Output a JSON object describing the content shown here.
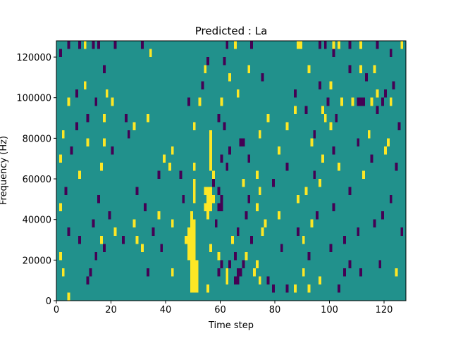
{
  "chart_data": {
    "type": "heatmap",
    "title": "Predicted : La",
    "xlabel": "Time step",
    "ylabel": "Frequency (Hz)",
    "xlim": [
      0,
      128
    ],
    "ylim": [
      0,
      128000
    ],
    "xticks": [
      0,
      20,
      40,
      60,
      80,
      100,
      120
    ],
    "yticks": [
      0,
      20000,
      40000,
      60000,
      80000,
      100000,
      120000
    ],
    "xtick_labels": [
      "0",
      "20",
      "40",
      "60",
      "80",
      "100",
      "120"
    ],
    "ytick_labels": [
      "0",
      "20000",
      "40000",
      "60000",
      "80000",
      "100000",
      "120000"
    ],
    "colormap": "viridis",
    "value_levels": [
      -1,
      0,
      1
    ],
    "level_colors": {
      "-1": "#440154",
      "0": "#21918c",
      "1": "#fde725"
    },
    "background_value": 0,
    "grid": false,
    "bin_height_hz": 4000,
    "cells": [
      {
        "t": 4,
        "f": 0,
        "v": 1
      },
      {
        "t": 49,
        "f": 4000,
        "v": 1
      },
      {
        "t": 50,
        "f": 4000,
        "v": 1
      },
      {
        "t": 51,
        "f": 4000,
        "v": 1
      },
      {
        "t": 55,
        "f": 4000,
        "v": 1
      },
      {
        "t": 79,
        "f": 4000,
        "v": -1
      },
      {
        "t": 84,
        "f": 4000,
        "v": -1
      },
      {
        "t": 87,
        "f": 4000,
        "v": 1
      },
      {
        "t": 92,
        "f": 4000,
        "v": 1
      },
      {
        "t": 103,
        "f": 4000,
        "v": -1
      },
      {
        "t": 11,
        "f": 8000,
        "v": -1
      },
      {
        "t": 49,
        "f": 8000,
        "v": 1
      },
      {
        "t": 50,
        "f": 8000,
        "v": 1
      },
      {
        "t": 51,
        "f": 8000,
        "v": 1
      },
      {
        "t": 62,
        "f": 8000,
        "v": 1
      },
      {
        "t": 65,
        "f": 8000,
        "v": -1
      },
      {
        "t": 66,
        "f": 8000,
        "v": -1
      },
      {
        "t": 74,
        "f": 8000,
        "v": 1
      },
      {
        "t": 77,
        "f": 8000,
        "v": -1
      },
      {
        "t": 96,
        "f": 8000,
        "v": 1
      },
      {
        "t": 2,
        "f": 12000,
        "v": 1
      },
      {
        "t": 12,
        "f": 12000,
        "v": -1
      },
      {
        "t": 33,
        "f": 12000,
        "v": -1
      },
      {
        "t": 42,
        "f": 12000,
        "v": 1
      },
      {
        "t": 49,
        "f": 12000,
        "v": 1
      },
      {
        "t": 50,
        "f": 12000,
        "v": 1
      },
      {
        "t": 51,
        "f": 12000,
        "v": 1
      },
      {
        "t": 59,
        "f": 12000,
        "v": -1
      },
      {
        "t": 62,
        "f": 12000,
        "v": 1
      },
      {
        "t": 66,
        "f": 12000,
        "v": -1
      },
      {
        "t": 67,
        "f": 12000,
        "v": -1
      },
      {
        "t": 72,
        "f": 12000,
        "v": 1
      },
      {
        "t": 90,
        "f": 12000,
        "v": 1
      },
      {
        "t": 105,
        "f": 12000,
        "v": -1
      },
      {
        "t": 111,
        "f": 12000,
        "v": -1
      },
      {
        "t": 124,
        "f": 12000,
        "v": 1
      },
      {
        "t": 49,
        "f": 16000,
        "v": 1
      },
      {
        "t": 50,
        "f": 16000,
        "v": 1
      },
      {
        "t": 51,
        "f": 16000,
        "v": 1
      },
      {
        "t": 60,
        "f": 16000,
        "v": -1
      },
      {
        "t": 63,
        "f": 16000,
        "v": -1
      },
      {
        "t": 68,
        "f": 16000,
        "v": -1
      },
      {
        "t": 73,
        "f": 16000,
        "v": 1
      },
      {
        "t": 107,
        "f": 16000,
        "v": -1
      },
      {
        "t": 118,
        "f": 16000,
        "v": -1
      },
      {
        "t": 1,
        "f": 20000,
        "v": 1
      },
      {
        "t": 14,
        "f": 20000,
        "v": -1
      },
      {
        "t": 48,
        "f": 20000,
        "v": 1
      },
      {
        "t": 49,
        "f": 20000,
        "v": 1
      },
      {
        "t": 50,
        "f": 20000,
        "v": 1
      },
      {
        "t": 59,
        "f": 20000,
        "v": 1
      },
      {
        "t": 65,
        "f": 20000,
        "v": -1
      },
      {
        "t": 69,
        "f": 20000,
        "v": 1
      },
      {
        "t": 92,
        "f": 20000,
        "v": -1
      },
      {
        "t": 17,
        "f": 24000,
        "v": -1
      },
      {
        "t": 31,
        "f": 24000,
        "v": 1
      },
      {
        "t": 38,
        "f": 24000,
        "v": -1
      },
      {
        "t": 48,
        "f": 24000,
        "v": 1
      },
      {
        "t": 49,
        "f": 24000,
        "v": 1
      },
      {
        "t": 50,
        "f": 24000,
        "v": 1
      },
      {
        "t": 56,
        "f": 24000,
        "v": 1
      },
      {
        "t": 82,
        "f": 24000,
        "v": -1
      },
      {
        "t": 100,
        "f": 24000,
        "v": -1
      },
      {
        "t": 8,
        "f": 28000,
        "v": -1
      },
      {
        "t": 16,
        "f": 28000,
        "v": 1
      },
      {
        "t": 24,
        "f": 28000,
        "v": -1
      },
      {
        "t": 29,
        "f": 28000,
        "v": 1
      },
      {
        "t": 47,
        "f": 28000,
        "v": 1
      },
      {
        "t": 48,
        "f": 28000,
        "v": 1
      },
      {
        "t": 49,
        "f": 28000,
        "v": 1
      },
      {
        "t": 50,
        "f": 28000,
        "v": 1
      },
      {
        "t": 64,
        "f": 28000,
        "v": 1
      },
      {
        "t": 71,
        "f": 28000,
        "v": -1
      },
      {
        "t": 90,
        "f": 28000,
        "v": 1
      },
      {
        "t": 105,
        "f": 28000,
        "v": -1
      },
      {
        "t": 4,
        "f": 32000,
        "v": -1
      },
      {
        "t": 21,
        "f": 32000,
        "v": 1
      },
      {
        "t": 35,
        "f": 32000,
        "v": -1
      },
      {
        "t": 48,
        "f": 32000,
        "v": 1
      },
      {
        "t": 49,
        "f": 32000,
        "v": 1
      },
      {
        "t": 50,
        "f": 32000,
        "v": 1
      },
      {
        "t": 66,
        "f": 32000,
        "v": -1
      },
      {
        "t": 75,
        "f": 32000,
        "v": 1
      },
      {
        "t": 88,
        "f": 32000,
        "v": -1
      },
      {
        "t": 110,
        "f": 32000,
        "v": -1
      },
      {
        "t": 126,
        "f": 32000,
        "v": -1
      },
      {
        "t": 13,
        "f": 36000,
        "v": -1
      },
      {
        "t": 28,
        "f": 36000,
        "v": 1
      },
      {
        "t": 42,
        "f": 36000,
        "v": 1
      },
      {
        "t": 49,
        "f": 36000,
        "v": 1
      },
      {
        "t": 50,
        "f": 36000,
        "v": 1
      },
      {
        "t": 58,
        "f": 36000,
        "v": -1
      },
      {
        "t": 76,
        "f": 36000,
        "v": 1
      },
      {
        "t": 93,
        "f": 36000,
        "v": 1
      },
      {
        "t": 116,
        "f": 36000,
        "v": -1
      },
      {
        "t": 19,
        "f": 40000,
        "v": -1
      },
      {
        "t": 37,
        "f": 40000,
        "v": 1
      },
      {
        "t": 49,
        "f": 40000,
        "v": 1
      },
      {
        "t": 55,
        "f": 40000,
        "v": 1
      },
      {
        "t": 69,
        "f": 40000,
        "v": -1
      },
      {
        "t": 81,
        "f": 40000,
        "v": 1
      },
      {
        "t": 95,
        "f": 40000,
        "v": -1
      },
      {
        "t": 119,
        "f": 40000,
        "v": -1
      },
      {
        "t": 1,
        "f": 44000,
        "v": 1
      },
      {
        "t": 32,
        "f": 44000,
        "v": -1
      },
      {
        "t": 54,
        "f": 44000,
        "v": 1
      },
      {
        "t": 55,
        "f": 44000,
        "v": 1
      },
      {
        "t": 56,
        "f": 44000,
        "v": 1
      },
      {
        "t": 59,
        "f": 44000,
        "v": -1
      },
      {
        "t": 60,
        "f": 44000,
        "v": -1
      },
      {
        "t": 73,
        "f": 44000,
        "v": 1
      },
      {
        "t": 101,
        "f": 44000,
        "v": -1
      },
      {
        "t": 15,
        "f": 48000,
        "v": -1
      },
      {
        "t": 46,
        "f": 48000,
        "v": -1
      },
      {
        "t": 50,
        "f": 48000,
        "v": 1
      },
      {
        "t": 55,
        "f": 48000,
        "v": 1
      },
      {
        "t": 56,
        "f": 48000,
        "v": 1
      },
      {
        "t": 57,
        "f": 48000,
        "v": 1
      },
      {
        "t": 60,
        "f": 48000,
        "v": -1
      },
      {
        "t": 70,
        "f": 48000,
        "v": -1
      },
      {
        "t": 88,
        "f": 48000,
        "v": 1
      },
      {
        "t": 122,
        "f": 48000,
        "v": -1
      },
      {
        "t": 3,
        "f": 52000,
        "v": -1
      },
      {
        "t": 29,
        "f": 52000,
        "v": -1
      },
      {
        "t": 50,
        "f": 52000,
        "v": 1
      },
      {
        "t": 54,
        "f": 52000,
        "v": 1
      },
      {
        "t": 55,
        "f": 52000,
        "v": 1
      },
      {
        "t": 56,
        "f": 52000,
        "v": 1
      },
      {
        "t": 59,
        "f": 52000,
        "v": -1
      },
      {
        "t": 74,
        "f": 52000,
        "v": 1
      },
      {
        "t": 91,
        "f": 52000,
        "v": 1
      },
      {
        "t": 107,
        "f": 52000,
        "v": -1
      },
      {
        "t": 50,
        "f": 56000,
        "v": 1
      },
      {
        "t": 57,
        "f": 56000,
        "v": -1
      },
      {
        "t": 68,
        "f": 56000,
        "v": 1
      },
      {
        "t": 79,
        "f": 56000,
        "v": -1
      },
      {
        "t": 96,
        "f": 56000,
        "v": 1
      },
      {
        "t": 8,
        "f": 60000,
        "v": 1
      },
      {
        "t": 37,
        "f": 60000,
        "v": -1
      },
      {
        "t": 45,
        "f": 60000,
        "v": -1
      },
      {
        "t": 57,
        "f": 60000,
        "v": 1
      },
      {
        "t": 73,
        "f": 60000,
        "v": 1
      },
      {
        "t": 94,
        "f": 60000,
        "v": -1
      },
      {
        "t": 112,
        "f": 60000,
        "v": 1
      },
      {
        "t": 16,
        "f": 64000,
        "v": 1
      },
      {
        "t": 41,
        "f": 64000,
        "v": 1
      },
      {
        "t": 50,
        "f": 64000,
        "v": 1
      },
      {
        "t": 56,
        "f": 64000,
        "v": 1
      },
      {
        "t": 62,
        "f": 64000,
        "v": -1
      },
      {
        "t": 84,
        "f": 64000,
        "v": -1
      },
      {
        "t": 103,
        "f": 64000,
        "v": 1
      },
      {
        "t": 124,
        "f": 64000,
        "v": -1
      },
      {
        "t": 1,
        "f": 68000,
        "v": 1
      },
      {
        "t": 39,
        "f": 68000,
        "v": 1
      },
      {
        "t": 56,
        "f": 68000,
        "v": 1
      },
      {
        "t": 60,
        "f": 68000,
        "v": -1
      },
      {
        "t": 70,
        "f": 68000,
        "v": -1
      },
      {
        "t": 97,
        "f": 68000,
        "v": 1
      },
      {
        "t": 115,
        "f": 68000,
        "v": -1
      },
      {
        "t": 5,
        "f": 72000,
        "v": -1
      },
      {
        "t": 20,
        "f": 72000,
        "v": -1
      },
      {
        "t": 42,
        "f": 72000,
        "v": 1
      },
      {
        "t": 56,
        "f": 72000,
        "v": 1
      },
      {
        "t": 63,
        "f": 72000,
        "v": -1
      },
      {
        "t": 81,
        "f": 72000,
        "v": 1
      },
      {
        "t": 101,
        "f": 72000,
        "v": -1
      },
      {
        "t": 120,
        "f": 72000,
        "v": 1
      },
      {
        "t": 11,
        "f": 76000,
        "v": 1
      },
      {
        "t": 17,
        "f": 76000,
        "v": 1
      },
      {
        "t": 56,
        "f": 76000,
        "v": 1
      },
      {
        "t": 67,
        "f": 76000,
        "v": -1
      },
      {
        "t": 68,
        "f": 76000,
        "v": -1
      },
      {
        "t": 93,
        "f": 76000,
        "v": 1
      },
      {
        "t": 110,
        "f": 76000,
        "v": -1
      },
      {
        "t": 121,
        "f": 76000,
        "v": 1
      },
      {
        "t": 2,
        "f": 80000,
        "v": 1
      },
      {
        "t": 26,
        "f": 80000,
        "v": -1
      },
      {
        "t": 56,
        "f": 80000,
        "v": 1
      },
      {
        "t": 74,
        "f": 80000,
        "v": 1
      },
      {
        "t": 94,
        "f": 80000,
        "v": -1
      },
      {
        "t": 114,
        "f": 80000,
        "v": 1
      },
      {
        "t": 7,
        "f": 84000,
        "v": -1
      },
      {
        "t": 28,
        "f": 84000,
        "v": 1
      },
      {
        "t": 50,
        "f": 84000,
        "v": 1
      },
      {
        "t": 61,
        "f": 84000,
        "v": -1
      },
      {
        "t": 84,
        "f": 84000,
        "v": 1
      },
      {
        "t": 100,
        "f": 84000,
        "v": 1
      },
      {
        "t": 125,
        "f": 84000,
        "v": -1
      },
      {
        "t": 11,
        "f": 88000,
        "v": -1
      },
      {
        "t": 17,
        "f": 88000,
        "v": 1
      },
      {
        "t": 25,
        "f": 88000,
        "v": -1
      },
      {
        "t": 33,
        "f": 88000,
        "v": 1
      },
      {
        "t": 59,
        "f": 88000,
        "v": -1
      },
      {
        "t": 77,
        "f": 88000,
        "v": 1
      },
      {
        "t": 98,
        "f": 88000,
        "v": 1
      },
      {
        "t": 102,
        "f": 88000,
        "v": -1
      },
      {
        "t": 87,
        "f": 92000,
        "v": 1
      },
      {
        "t": 91,
        "f": 92000,
        "v": -1
      },
      {
        "t": 97,
        "f": 92000,
        "v": 1
      },
      {
        "t": 117,
        "f": 92000,
        "v": -1
      },
      {
        "t": 4,
        "f": 96000,
        "v": 1
      },
      {
        "t": 14,
        "f": 96000,
        "v": -1
      },
      {
        "t": 20,
        "f": 96000,
        "v": 1
      },
      {
        "t": 48,
        "f": 96000,
        "v": -1
      },
      {
        "t": 52,
        "f": 96000,
        "v": 1
      },
      {
        "t": 60,
        "f": 96000,
        "v": 1
      },
      {
        "t": 99,
        "f": 96000,
        "v": -1
      },
      {
        "t": 104,
        "f": 96000,
        "v": 1
      },
      {
        "t": 108,
        "f": 96000,
        "v": 1
      },
      {
        "t": 110,
        "f": 96000,
        "v": -1
      },
      {
        "t": 111,
        "f": 96000,
        "v": -1
      },
      {
        "t": 112,
        "f": 96000,
        "v": -1
      },
      {
        "t": 115,
        "f": 96000,
        "v": 1
      },
      {
        "t": 119,
        "f": 96000,
        "v": -1
      },
      {
        "t": 122,
        "f": 96000,
        "v": 1
      },
      {
        "t": 7,
        "f": 100000,
        "v": -1
      },
      {
        "t": 18,
        "f": 100000,
        "v": 1
      },
      {
        "t": 66,
        "f": 100000,
        "v": 1
      },
      {
        "t": 87,
        "f": 100000,
        "v": -1
      },
      {
        "t": 117,
        "f": 100000,
        "v": 1
      },
      {
        "t": 120,
        "f": 100000,
        "v": -1
      },
      {
        "t": 10,
        "f": 104000,
        "v": 1
      },
      {
        "t": 53,
        "f": 104000,
        "v": -1
      },
      {
        "t": 96,
        "f": 104000,
        "v": -1
      },
      {
        "t": 100,
        "f": 104000,
        "v": 1
      },
      {
        "t": 123,
        "f": 104000,
        "v": -1
      },
      {
        "t": 63,
        "f": 108000,
        "v": 1
      },
      {
        "t": 75,
        "f": 108000,
        "v": -1
      },
      {
        "t": 113,
        "f": 108000,
        "v": -1
      },
      {
        "t": 17,
        "f": 112000,
        "v": -1
      },
      {
        "t": 54,
        "f": 112000,
        "v": 1
      },
      {
        "t": 70,
        "f": 112000,
        "v": 1
      },
      {
        "t": 92,
        "f": 112000,
        "v": 1
      },
      {
        "t": 107,
        "f": 112000,
        "v": -1
      },
      {
        "t": 111,
        "f": 112000,
        "v": 1
      },
      {
        "t": 116,
        "f": 112000,
        "v": 1
      },
      {
        "t": 55,
        "f": 116000,
        "v": -1
      },
      {
        "t": 61,
        "f": 116000,
        "v": -1
      },
      {
        "t": 1,
        "f": 120000,
        "v": -1
      },
      {
        "t": 34,
        "f": 120000,
        "v": 1
      },
      {
        "t": 101,
        "f": 120000,
        "v": -1
      },
      {
        "t": 122,
        "f": 120000,
        "v": -1
      },
      {
        "t": 8,
        "f": 124000,
        "v": -1
      },
      {
        "t": 10,
        "f": 124000,
        "v": 1
      },
      {
        "t": 13,
        "f": 124000,
        "v": -1
      },
      {
        "t": 15,
        "f": 124000,
        "v": -1
      },
      {
        "t": 21,
        "f": 124000,
        "v": -1
      },
      {
        "t": 31,
        "f": 124000,
        "v": -1
      },
      {
        "t": 62,
        "f": 124000,
        "v": -1
      },
      {
        "t": 65,
        "f": 124000,
        "v": 1
      },
      {
        "t": 71,
        "f": 124000,
        "v": -1
      },
      {
        "t": 96,
        "f": 124000,
        "v": -1
      },
      {
        "t": 101,
        "f": 124000,
        "v": 1
      },
      {
        "t": 107,
        "f": 124000,
        "v": -1
      },
      {
        "t": 117,
        "f": 124000,
        "v": -1
      },
      {
        "t": 126,
        "f": 124000,
        "v": 1
      },
      {
        "t": 4,
        "f": 124000,
        "v": -1
      },
      {
        "t": 88,
        "f": 124000,
        "v": 1
      },
      {
        "t": 89,
        "f": 124000,
        "v": 1
      },
      {
        "t": 98,
        "f": 124000,
        "v": -1
      },
      {
        "t": 103,
        "f": 124000,
        "v": 1
      },
      {
        "t": 111,
        "f": 124000,
        "v": 1
      }
    ]
  }
}
